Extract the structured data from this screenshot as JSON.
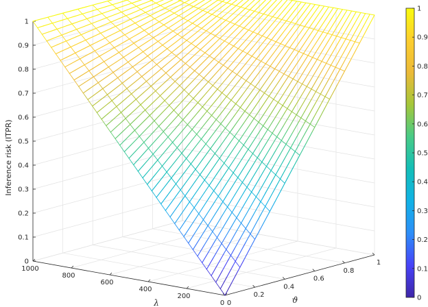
{
  "chart_data": {
    "type": "surface3d",
    "zlabel": "Inference risk (ITPR)",
    "xlabel": "λ",
    "ylabel": "ϑ",
    "xlim": [
      0,
      1000
    ],
    "ylim": [
      0,
      1
    ],
    "zlim": [
      0,
      1
    ],
    "x_ticks": [
      0,
      200,
      400,
      600,
      800,
      1000
    ],
    "x_tick_labels": [
      "0",
      "200",
      "400",
      "600",
      "800",
      "1000"
    ],
    "y_ticks": [
      0,
      0.2,
      0.4,
      0.6,
      0.8,
      1
    ],
    "y_tick_labels": [
      "0",
      "0.2",
      "0.4",
      "0.6",
      "0.8",
      "1"
    ],
    "z_ticks": [
      0,
      0.1,
      0.2,
      0.3,
      0.4,
      0.5,
      0.6,
      0.7,
      0.8,
      0.9,
      1
    ],
    "z_tick_labels": [
      "0",
      "0.1",
      "0.2",
      "0.3",
      "0.4",
      "0.5",
      "0.6",
      "0.7",
      "0.8",
      "0.9",
      "1"
    ],
    "colorbar": {
      "ticks": [
        0,
        0.1,
        0.2,
        0.3,
        0.4,
        0.5,
        0.6,
        0.7,
        0.8,
        0.9,
        1
      ],
      "tick_labels": [
        "0",
        "0.1",
        "0.2",
        "0.3",
        "0.4",
        "0.5",
        "0.6",
        "0.7",
        "0.8",
        "0.9",
        "1"
      ],
      "colormap": "parula",
      "colors": [
        "#3e26a8",
        "#4743f8",
        "#2d8ef8",
        "#11b2e6",
        "#13beb8",
        "#48cb86",
        "#a5c73a",
        "#ecba38",
        "#fcce2e",
        "#f9fb0e"
      ]
    },
    "surface": {
      "description_formula": "z = 1 - (1 - y) * (1 - x/1000)",
      "x_samples": 43,
      "y_samples": 11
    },
    "grid": true,
    "view": "3d"
  }
}
